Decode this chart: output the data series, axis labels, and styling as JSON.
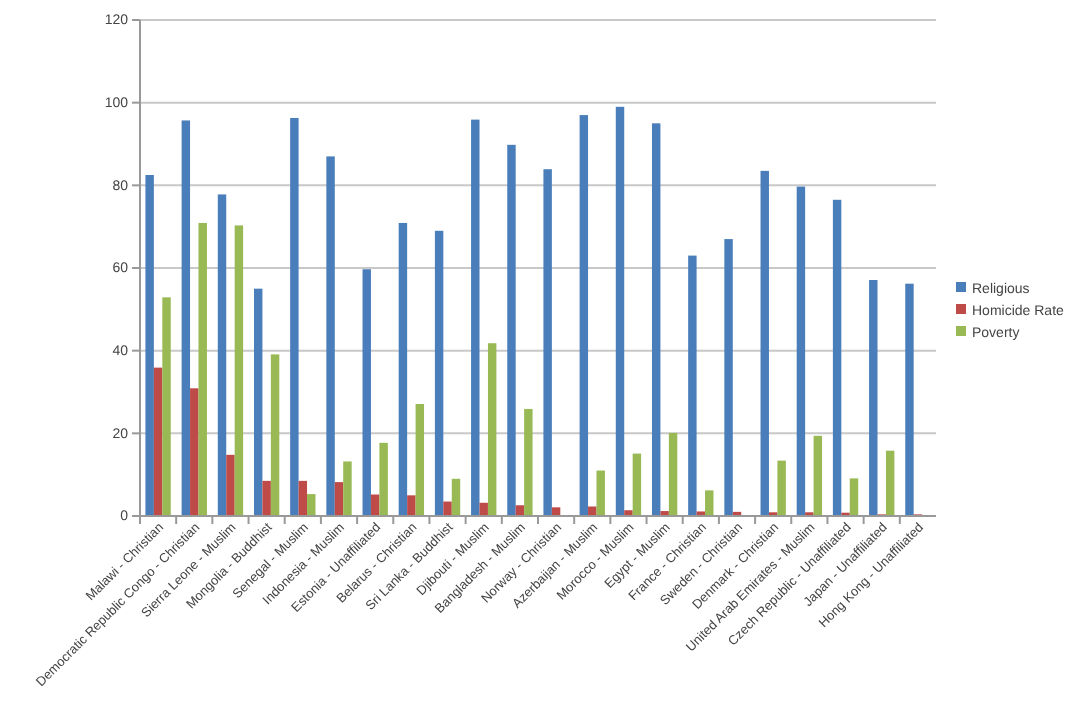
{
  "chart_data": {
    "type": "bar",
    "categories": [
      "Malawi - Christian",
      "Democratic Republic Congo - Christian",
      "Sierra Leone - Muslim",
      "Mongolia - Buddhist",
      "Senegal - Muslim",
      "Indonesia - Muslim",
      "Estonia - Unaffiliated",
      "Belarus - Christian",
      "Sri Lanka - Buddhist",
      "Djibouti - Muslim",
      "Bangladesh - Muslim",
      "Norway - Christian",
      "Azerbaijan - Muslim",
      "Morocco - Muslim",
      "Egypt - Muslim",
      "France - Christian",
      "Sweden - Christian",
      "Denmark - Christian",
      "United Arab Emirates - Muslim",
      "Czech Republic - Unaffiliated",
      "Japan - Unaffiliated",
      "Hong Kong - Unaffiliated"
    ],
    "series": [
      {
        "name": "Religious",
        "color": "#4a7ebb",
        "values": [
          82.5,
          95.7,
          77.8,
          55,
          96.3,
          87,
          59.7,
          70.9,
          69,
          95.9,
          89.8,
          83.9,
          97,
          99,
          95,
          63,
          67,
          83.5,
          79.7,
          76.5,
          57.1,
          56.2
        ]
      },
      {
        "name": "Homicide Rate",
        "color": "#be4b48",
        "values": [
          35.9,
          30.9,
          14.8,
          8.5,
          8.5,
          8.2,
          5.2,
          5,
          3.5,
          3.2,
          2.6,
          2.1,
          2.3,
          1.4,
          1.2,
          1.1,
          1,
          0.9,
          0.9,
          0.8,
          0.4,
          0.4
        ]
      },
      {
        "name": "Poverty",
        "color": "#98b954",
        "values": [
          52.9,
          70.9,
          70.3,
          39.1,
          5.3,
          13.2,
          17.7,
          27.1,
          9,
          41.8,
          25.9,
          null,
          11,
          15.1,
          20.1,
          6.2,
          null,
          13.4,
          19.4,
          9.1,
          15.8,
          null
        ]
      }
    ],
    "ylim": [
      0,
      120
    ],
    "yticks": [
      0,
      20,
      40,
      60,
      80,
      100,
      120
    ],
    "grid": "y",
    "legend": "right"
  }
}
